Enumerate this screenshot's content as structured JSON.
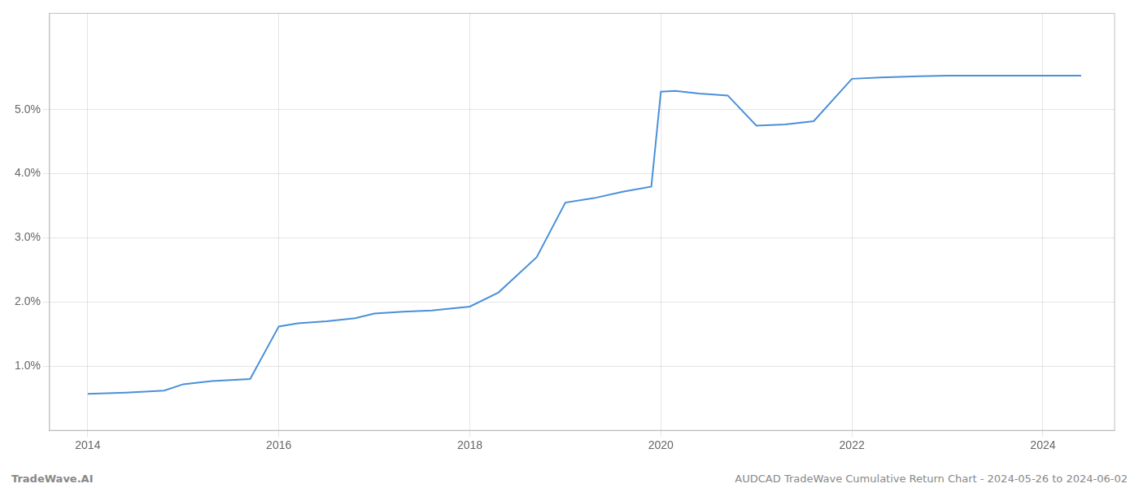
{
  "chart_data": {
    "type": "line",
    "x": [
      2014.0,
      2014.4,
      2014.8,
      2015.0,
      2015.3,
      2015.7,
      2016.0,
      2016.2,
      2016.5,
      2016.8,
      2017.0,
      2017.3,
      2017.6,
      2018.0,
      2018.3,
      2018.7,
      2019.0,
      2019.3,
      2019.6,
      2019.9,
      2020.0,
      2020.15,
      2020.4,
      2020.7,
      2021.0,
      2021.3,
      2021.6,
      2022.0,
      2022.3,
      2022.7,
      2023.0,
      2023.3,
      2023.7,
      2024.0,
      2024.4
    ],
    "values": [
      0.57,
      0.59,
      0.62,
      0.72,
      0.77,
      0.8,
      1.62,
      1.67,
      1.7,
      1.75,
      1.82,
      1.85,
      1.87,
      1.93,
      2.15,
      2.7,
      3.55,
      3.62,
      3.72,
      3.8,
      5.28,
      5.29,
      5.25,
      5.22,
      4.75,
      4.77,
      4.82,
      5.48,
      5.5,
      5.52,
      5.53,
      5.53,
      5.53,
      5.53,
      5.53
    ],
    "color": "#4a90d9",
    "xlim": [
      2013.6,
      2024.75
    ],
    "xticks": [
      2014,
      2016,
      2018,
      2020,
      2022,
      2024
    ],
    "ylim": [
      0.0,
      6.5
    ],
    "yticks": [
      {
        "value": 1.0,
        "label": "1.0%"
      },
      {
        "value": 2.0,
        "label": "2.0%"
      },
      {
        "value": 3.0,
        "label": "3.0%"
      },
      {
        "value": 4.0,
        "label": "4.0%"
      },
      {
        "value": 5.0,
        "label": "5.0%"
      }
    ],
    "grid": true,
    "annotations": [
      "TradeWave.AI",
      "AUDCAD TradeWave Cumulative Return Chart - 2024-05-26 to 2024-06-02"
    ]
  }
}
